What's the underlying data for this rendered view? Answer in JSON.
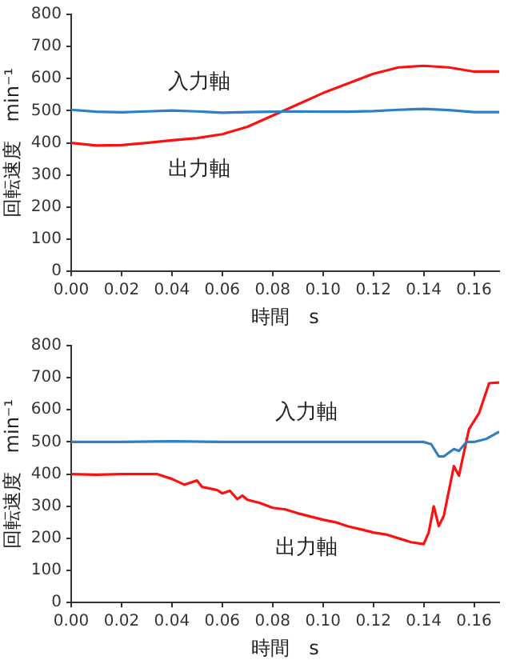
{
  "chart_data": [
    {
      "type": "line",
      "xlabel": "時間　s",
      "ylabel": "回転速度　min⁻¹",
      "xlim": [
        0,
        0.17
      ],
      "xticks": [
        {
          "value": 0,
          "label": "0.00"
        },
        {
          "value": 0.02,
          "label": "0.02"
        },
        {
          "value": 0.04,
          "label": "0.04"
        },
        {
          "value": 0.06,
          "label": "0.06"
        },
        {
          "value": 0.08,
          "label": "0.08"
        },
        {
          "value": 0.1,
          "label": "0.10"
        },
        {
          "value": 0.12,
          "label": "0.12"
        },
        {
          "value": 0.14,
          "label": "0.14"
        },
        {
          "value": 0.16,
          "label": "0.16"
        }
      ],
      "ylim": [
        0,
        800
      ],
      "yticks": [
        0,
        100,
        200,
        300,
        400,
        500,
        600,
        700,
        800
      ],
      "grid": false,
      "legend": false,
      "marker": "none",
      "line_style": "solid",
      "x": [
        0,
        0.01,
        0.02,
        0.03,
        0.04,
        0.05,
        0.06,
        0.07,
        0.08,
        0.09,
        0.1,
        0.11,
        0.12,
        0.13,
        0.14,
        0.15,
        0.16,
        0.17
      ],
      "series": [
        {
          "name": "入力軸",
          "color": "#2e7fc4",
          "values": [
            503,
            497,
            495,
            498,
            501,
            498,
            494,
            496,
            497,
            498,
            497,
            497,
            499,
            503,
            506,
            502,
            496,
            496
          ]
        },
        {
          "name": "出力軸",
          "color": "#ff1010",
          "values": [
            400,
            392,
            393,
            400,
            408,
            415,
            427,
            450,
            485,
            520,
            555,
            585,
            615,
            635,
            640,
            635,
            622,
            622
          ]
        }
      ]
    },
    {
      "type": "line",
      "xlabel": "時間　s",
      "ylabel": "回転速度　min⁻¹",
      "xlim": [
        0,
        0.17
      ],
      "xticks": [
        {
          "value": 0,
          "label": "0.00"
        },
        {
          "value": 0.02,
          "label": "0.02"
        },
        {
          "value": 0.04,
          "label": "0.04"
        },
        {
          "value": 0.06,
          "label": "0.06"
        },
        {
          "value": 0.08,
          "label": "0.08"
        },
        {
          "value": 0.1,
          "label": "0.10"
        },
        {
          "value": 0.12,
          "label": "0.12"
        },
        {
          "value": 0.14,
          "label": "0.14"
        },
        {
          "value": 0.16,
          "label": "0.16"
        }
      ],
      "ylim": [
        0,
        800
      ],
      "yticks": [
        0,
        100,
        200,
        300,
        400,
        500,
        600,
        700,
        800
      ],
      "grid": false,
      "legend": false,
      "marker": "none",
      "line_style": "solid",
      "series": [
        {
          "name": "入力軸",
          "color": "#2e7fc4",
          "x": [
            0,
            0.02,
            0.04,
            0.06,
            0.08,
            0.1,
            0.12,
            0.14,
            0.143,
            0.146,
            0.148,
            0.152,
            0.154,
            0.157,
            0.16,
            0.165,
            0.17
          ],
          "values": [
            500,
            500,
            502,
            500,
            500,
            500,
            500,
            500,
            493,
            455,
            455,
            478,
            472,
            500,
            500,
            510,
            532
          ]
        },
        {
          "name": "出力軸",
          "color": "#ff1010",
          "x": [
            0,
            0.01,
            0.02,
            0.03,
            0.034,
            0.04,
            0.045,
            0.05,
            0.052,
            0.058,
            0.06,
            0.063,
            0.066,
            0.068,
            0.07,
            0.075,
            0.08,
            0.085,
            0.09,
            0.095,
            0.1,
            0.105,
            0.11,
            0.115,
            0.12,
            0.125,
            0.13,
            0.135,
            0.14,
            0.142,
            0.144,
            0.146,
            0.148,
            0.152,
            0.154,
            0.158,
            0.162,
            0.166,
            0.17
          ],
          "values": [
            400,
            398,
            400,
            400,
            400,
            385,
            367,
            380,
            360,
            350,
            340,
            348,
            322,
            333,
            320,
            310,
            295,
            290,
            278,
            268,
            258,
            250,
            237,
            228,
            218,
            212,
            200,
            188,
            182,
            218,
            300,
            238,
            270,
            425,
            395,
            540,
            590,
            683,
            685
          ]
        }
      ]
    }
  ]
}
